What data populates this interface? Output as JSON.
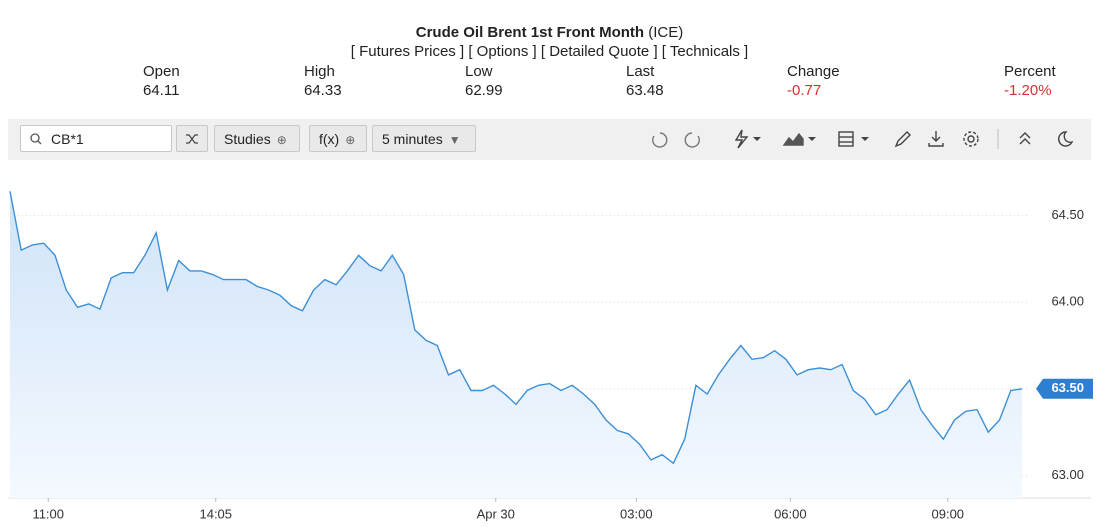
{
  "quote": {
    "title": "Crude Oil Brent 1st Front Month",
    "exchange": "(ICE)",
    "links": [
      "[ Futures Prices ]",
      "[ Options ]",
      "[ Detailed Quote ]",
      "[ Technicals ]"
    ],
    "stats": [
      {
        "label": "Open",
        "value": "64.11"
      },
      {
        "label": "High",
        "value": "64.33"
      },
      {
        "label": "Low",
        "value": "62.99"
      },
      {
        "label": "Last",
        "value": "63.48"
      },
      {
        "label": "Change",
        "value": "-0.77"
      },
      {
        "label": "Percent",
        "value": "-1.20%"
      }
    ]
  },
  "toolbar": {
    "search": "CB*1",
    "buttons": [
      "Studies",
      "f(x)",
      "5 minutes"
    ]
  },
  "chart_data": {
    "type": "line",
    "color": "#3d8fd6",
    "last_value_marker": true,
    "xlim": [
      0,
      90
    ],
    "xticks": [
      {
        "value": 3.4,
        "label": "11:00"
      },
      {
        "value": 18.3,
        "label": "14:05"
      },
      {
        "value": 43.2,
        "label": "Apr 30"
      },
      {
        "value": 55.7,
        "label": "03:00"
      },
      {
        "value": 69.4,
        "label": "06:00"
      },
      {
        "value": 83.4,
        "label": "09:00"
      }
    ],
    "ylim": [
      62.87,
      64.82
    ],
    "yticks": [
      {
        "value": 63,
        "label": "63.00"
      },
      {
        "value": 63.5,
        "label": "63.50"
      },
      {
        "value": 64,
        "label": "64.00"
      },
      {
        "value": 64.5,
        "label": "64.50"
      }
    ],
    "values": [
      64.64,
      64.3,
      64.33,
      64.34,
      64.27,
      64.07,
      63.97,
      63.99,
      63.96,
      64.14,
      64.17,
      64.17,
      64.27,
      64.4,
      64.07,
      64.24,
      64.18,
      64.18,
      64.16,
      64.13,
      64.13,
      64.13,
      64.09,
      64.07,
      64.04,
      63.98,
      63.95,
      64.07,
      64.13,
      64.1,
      64.18,
      64.27,
      64.21,
      64.18,
      64.27,
      64.16,
      63.84,
      63.78,
      63.75,
      63.58,
      63.61,
      63.49,
      63.49,
      63.52,
      63.47,
      63.41,
      63.49,
      63.52,
      63.53,
      63.49,
      63.52,
      63.47,
      63.41,
      63.32,
      63.26,
      63.24,
      63.18,
      63.09,
      63.12,
      63.07,
      63.21,
      63.52,
      63.47,
      63.58,
      63.67,
      63.75,
      63.67,
      63.68,
      63.72,
      63.67,
      63.58,
      63.61,
      63.62,
      63.61,
      63.64,
      63.49,
      63.44,
      63.35,
      63.38,
      63.47,
      63.55,
      63.38,
      63.29,
      63.21,
      63.32,
      63.37,
      63.38,
      63.25,
      63.32,
      63.49,
      63.5
    ]
  }
}
